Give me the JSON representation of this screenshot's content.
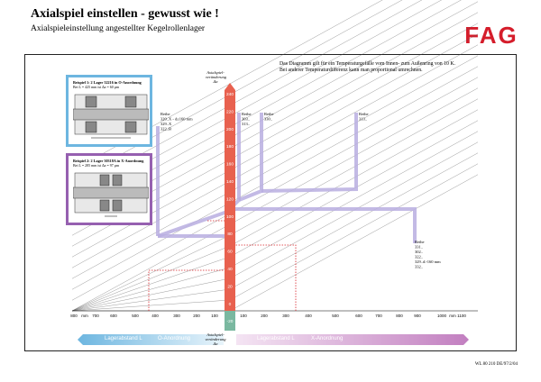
{
  "title": "Axialspiel einstellen - gewusst wie !",
  "subtitle": "Axialspieleinstellung angestellter Kegelrollenlager",
  "logo": "FAG",
  "note_lines": [
    "Das Diagramm gilt für ein Temperaturgefälle vom Innen- zum Außenring von 10 K.",
    "Bei anderer Temperaturdifferenz kann man proportional umrechnen."
  ],
  "example_o": {
    "title": "Beispiel 1: 2 Lager 32216 in O-Anordnung",
    "sub": "Bei L = 425 mm ist Δa = 60 µm",
    "border_color": "#6db6e0"
  },
  "example_x": {
    "title": "Beispiel 2: 2 Lager 30318A in X-Anordnung",
    "sub": "Bei L = 285 mm ist Δa = 97 µm",
    "border_color": "#9660b0"
  },
  "axis_top_label": [
    "Axialspiel-",
    "veränderung",
    "Δa"
  ],
  "axis_bottom_label": [
    "Axialspiel-",
    "veränderung",
    "Δa"
  ],
  "left_axis_ticks": [
    "800",
    "mm",
    "700",
    "600",
    "500",
    "400",
    "300",
    "200",
    "100"
  ],
  "right_axis_ticks": [
    "100",
    "200",
    "300",
    "400",
    "500",
    "600",
    "700",
    "800",
    "900",
    "1000",
    "mm",
    "1100"
  ],
  "vertical_scale": [
    "240",
    "220",
    "200",
    "180",
    "160",
    "140",
    "120",
    "100",
    "80",
    "60",
    "40",
    "20",
    "0",
    "-20",
    "-40"
  ],
  "series_labels": [
    {
      "text": [
        "Reihe",
        "320..X - d≤160 mm",
        "329..X",
        "322..B"
      ]
    },
    {
      "text": [
        "Reihe",
        "303..",
        "313.."
      ]
    },
    {
      "text": [
        "Reihe",
        "330.."
      ]
    },
    {
      "text": [
        "Reihe",
        "313.."
      ]
    },
    {
      "text": [
        "Reihe",
        "331..",
        "302..",
        "322..",
        "329..d>160 mm",
        "332.."
      ]
    }
  ],
  "bands": {
    "o_label": "Lagerabstand L",
    "o_arrangement": "O-Anordnung",
    "x_label": "Lagerabstand L",
    "x_arrangement": "X-Anordnung",
    "o_color": "#6db6e0",
    "x_color": "#c27fc0"
  },
  "footer": "WL 80 210 DE/97/2/04",
  "colors": {
    "red_bar": "#e8614f",
    "green_bar": "#7ab8a0",
    "line_purple": "#b9aee0",
    "grid": "#555555",
    "logo_red": "#d51d2b"
  }
}
